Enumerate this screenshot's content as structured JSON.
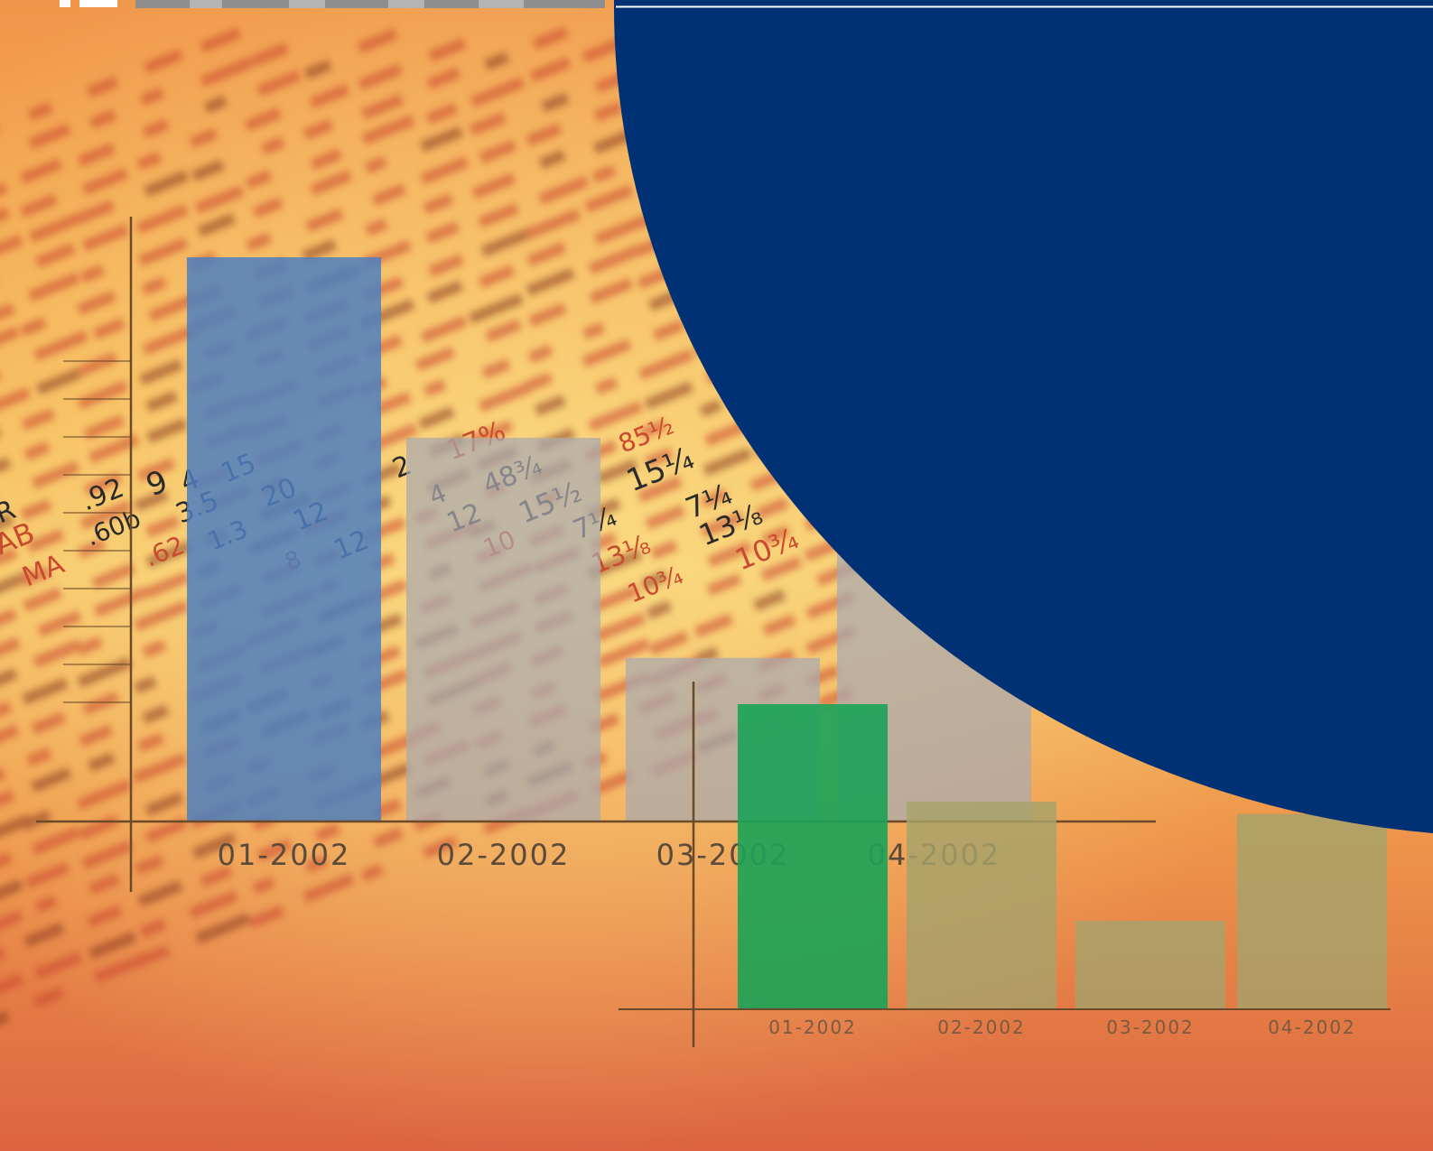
{
  "colors": {
    "background_top": "#f2a24f",
    "background_mid": "#f6c25f",
    "background_bottom": "#de6a3f",
    "ticker_text": "#c94a2e",
    "ticker_text_dark": "#2a2a2a",
    "bar_blue": "#4d7fc0",
    "bar_gray": "#a9a9b0",
    "bar_green": "#1aa358",
    "bar_khaki": "#a6a26a",
    "circle_navy": "#003175",
    "axis": "#6b4a2a",
    "top_band": "#8e8e8e"
  },
  "ticker_numbers": [
    {
      "text": ".92",
      "x": 95,
      "y": 566,
      "rot": -22,
      "dark": true,
      "size": 30
    },
    {
      "text": "9",
      "x": 168,
      "y": 550,
      "rot": -22,
      "dark": true,
      "size": 34
    },
    {
      "text": "4",
      "x": 205,
      "y": 545,
      "rot": -22,
      "dark": true,
      "size": 30
    },
    {
      "text": "15",
      "x": 250,
      "y": 535,
      "rot": -22,
      "dark": true,
      "size": 30
    },
    {
      "text": ".60b",
      "x": 100,
      "y": 605,
      "rot": -22,
      "dark": true,
      "size": 28
    },
    {
      "text": "3.5",
      "x": 200,
      "y": 580,
      "rot": -22,
      "dark": true,
      "size": 30
    },
    {
      "text": "20",
      "x": 295,
      "y": 562,
      "rot": -22,
      "dark": true,
      "size": 30
    },
    {
      "text": ".62",
      "x": 165,
      "y": 628,
      "rot": -22,
      "dark": false,
      "size": 28
    },
    {
      "text": "1.3",
      "x": 235,
      "y": 610,
      "rot": -22,
      "dark": true,
      "size": 28
    },
    {
      "text": "12",
      "x": 330,
      "y": 588,
      "rot": -22,
      "dark": true,
      "size": 30
    },
    {
      "text": "8",
      "x": 320,
      "y": 632,
      "rot": -22,
      "dark": false,
      "size": 26
    },
    {
      "text": "12",
      "x": 375,
      "y": 620,
      "rot": -22,
      "dark": true,
      "size": 30
    },
    {
      "text": "2",
      "x": 440,
      "y": 530,
      "rot": -22,
      "dark": true,
      "size": 30
    },
    {
      "text": "17%",
      "x": 500,
      "y": 510,
      "rot": -22,
      "dark": false,
      "size": 30
    },
    {
      "text": "4",
      "x": 480,
      "y": 560,
      "rot": -22,
      "dark": true,
      "size": 28
    },
    {
      "text": "48¾",
      "x": 540,
      "y": 548,
      "rot": -22,
      "dark": true,
      "size": 30
    },
    {
      "text": "12",
      "x": 500,
      "y": 590,
      "rot": -22,
      "dark": true,
      "size": 30
    },
    {
      "text": "15½",
      "x": 580,
      "y": 580,
      "rot": -22,
      "dark": true,
      "size": 32
    },
    {
      "text": "15¼",
      "x": 700,
      "y": 545,
      "rot": -22,
      "dark": true,
      "size": 34
    },
    {
      "text": "10",
      "x": 540,
      "y": 618,
      "rot": -22,
      "dark": false,
      "size": 28
    },
    {
      "text": "7¼",
      "x": 640,
      "y": 598,
      "rot": -22,
      "dark": true,
      "size": 30
    },
    {
      "text": "7¼",
      "x": 765,
      "y": 575,
      "rot": -22,
      "dark": true,
      "size": 32
    },
    {
      "text": "13⅛",
      "x": 660,
      "y": 636,
      "rot": -22,
      "dark": false,
      "size": 30
    },
    {
      "text": "13⅛",
      "x": 780,
      "y": 605,
      "rot": -22,
      "dark": true,
      "size": 32
    },
    {
      "text": "10¾",
      "x": 820,
      "y": 632,
      "rot": -22,
      "dark": false,
      "size": 32
    },
    {
      "text": "10¾",
      "x": 700,
      "y": 668,
      "rot": -22,
      "dark": false,
      "size": 28
    },
    {
      "text": "85½",
      "x": 690,
      "y": 502,
      "rot": -22,
      "dark": false,
      "size": 28
    },
    {
      "text": "AB",
      "x": 0,
      "y": 615,
      "rot": -22,
      "dark": false,
      "size": 32
    },
    {
      "text": "MA",
      "x": 30,
      "y": 650,
      "rot": -22,
      "dark": false,
      "size": 30
    },
    {
      "text": "R",
      "x": 0,
      "y": 580,
      "rot": -22,
      "dark": true,
      "size": 30
    }
  ],
  "chart_data": [
    {
      "type": "bar",
      "categories": [
        "01-2002",
        "02-2002",
        "03-2002",
        "04-2002"
      ],
      "values": [
        100,
        68,
        29,
        50
      ],
      "ylim": [
        0,
        110
      ]
    },
    {
      "type": "bar",
      "categories": [
        "01-2002",
        "02-2002",
        "03-2002",
        "04-2002"
      ],
      "values": [
        100,
        68,
        29,
        64
      ],
      "ylim": [
        0,
        110
      ]
    }
  ]
}
